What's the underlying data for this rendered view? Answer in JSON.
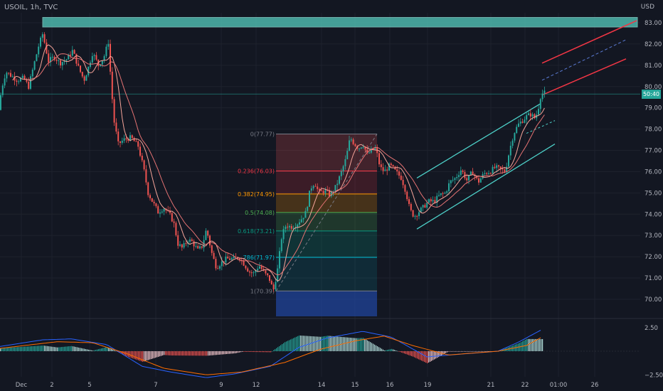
{
  "header": {
    "symbol": "USOIL, 1h, TVC",
    "currency": "USD"
  },
  "current_price_label": "50:40",
  "colors": {
    "bg": "#131722",
    "up": "#26a69a",
    "down": "#ef5350",
    "grid": "#1e222d"
  },
  "chart_data": {
    "type": "candlestick",
    "price_axis": {
      "ticks": [
        83.0,
        82.0,
        81.0,
        80.0,
        79.0,
        78.0,
        77.0,
        76.0,
        75.0,
        74.0,
        73.0,
        72.0,
        71.0,
        70.0
      ],
      "tick_labels": [
        "83.00",
        "82.00",
        "81.00",
        "80.00",
        "79.00",
        "78.00",
        "77.00",
        "76.00",
        "75.00",
        "74.00",
        "73.00",
        "72.00",
        "71.00",
        "70.00"
      ],
      "range": [
        69.8,
        83.6
      ]
    },
    "time_axis": {
      "labels": [
        "Dec",
        "2",
        "5",
        "7",
        "9",
        "12",
        "14",
        "15",
        "16",
        "19",
        "21",
        "22",
        "01:00",
        "26"
      ]
    },
    "price_path": [
      [
        0,
        78.9
      ],
      [
        4,
        79.9
      ],
      [
        10,
        80.7
      ],
      [
        18,
        80.5
      ],
      [
        26,
        80.3
      ],
      [
        35,
        80.4
      ],
      [
        42,
        80.0
      ],
      [
        50,
        81.1
      ],
      [
        56,
        81.9
      ],
      [
        62,
        82.5
      ],
      [
        66,
        81.8
      ],
      [
        70,
        81.2
      ],
      [
        78,
        81.4
      ],
      [
        86,
        81.1
      ],
      [
        96,
        81.3
      ],
      [
        104,
        81.7
      ],
      [
        112,
        80.9
      ],
      [
        120,
        80.3
      ],
      [
        126,
        80.9
      ],
      [
        132,
        81.6
      ],
      [
        140,
        81.0
      ],
      [
        148,
        81.4
      ],
      [
        154,
        82.1
      ],
      [
        158,
        80.1
      ],
      [
        162,
        78.4
      ],
      [
        168,
        77.3
      ],
      [
        176,
        77.5
      ],
      [
        186,
        77.6
      ],
      [
        196,
        77.2
      ],
      [
        204,
        76.1
      ],
      [
        210,
        75.0
      ],
      [
        216,
        74.6
      ],
      [
        224,
        74.1
      ],
      [
        232,
        74.3
      ],
      [
        240,
        74.0
      ],
      [
        246,
        73.6
      ],
      [
        252,
        72.6
      ],
      [
        258,
        72.4
      ],
      [
        266,
        72.8
      ],
      [
        272,
        72.7
      ],
      [
        280,
        72.3
      ],
      [
        286,
        72.5
      ],
      [
        292,
        73.3
      ],
      [
        300,
        72.1
      ],
      [
        306,
        71.5
      ],
      [
        312,
        71.7
      ],
      [
        320,
        71.9
      ],
      [
        330,
        71.9
      ],
      [
        338,
        72.0
      ],
      [
        346,
        71.6
      ],
      [
        352,
        71.3
      ],
      [
        358,
        71.2
      ],
      [
        366,
        71.6
      ],
      [
        374,
        71.2
      ],
      [
        380,
        71.0
      ],
      [
        386,
        70.4
      ],
      [
        392,
        71.4
      ],
      [
        398,
        73.0
      ],
      [
        404,
        73.5
      ],
      [
        410,
        73.4
      ],
      [
        418,
        73.5
      ],
      [
        426,
        73.8
      ],
      [
        432,
        74.1
      ],
      [
        438,
        75.2
      ],
      [
        444,
        75.5
      ],
      [
        450,
        75.0
      ],
      [
        458,
        75.1
      ],
      [
        466,
        74.9
      ],
      [
        474,
        75.3
      ],
      [
        482,
        76.0
      ],
      [
        488,
        76.6
      ],
      [
        494,
        77.6
      ],
      [
        500,
        77.3
      ],
      [
        506,
        77.1
      ],
      [
        512,
        77.3
      ],
      [
        518,
        76.8
      ],
      [
        524,
        77.0
      ],
      [
        530,
        77.1
      ],
      [
        536,
        76.2
      ],
      [
        542,
        76.0
      ],
      [
        550,
        76.3
      ],
      [
        558,
        76.0
      ],
      [
        566,
        75.7
      ],
      [
        572,
        75.1
      ],
      [
        578,
        74.2
      ],
      [
        584,
        73.9
      ],
      [
        590,
        74.1
      ],
      [
        596,
        74.3
      ],
      [
        604,
        74.6
      ],
      [
        612,
        74.6
      ],
      [
        620,
        74.9
      ],
      [
        628,
        75.0
      ],
      [
        634,
        75.5
      ],
      [
        642,
        75.7
      ],
      [
        650,
        76.1
      ],
      [
        658,
        75.6
      ],
      [
        666,
        76.0
      ],
      [
        674,
        75.5
      ],
      [
        682,
        75.9
      ],
      [
        690,
        76.0
      ],
      [
        698,
        76.2
      ],
      [
        706,
        76.1
      ],
      [
        712,
        76.0
      ],
      [
        718,
        77.0
      ],
      [
        724,
        77.8
      ],
      [
        730,
        78.2
      ],
      [
        736,
        78.4
      ],
      [
        742,
        78.6
      ],
      [
        748,
        78.7
      ],
      [
        754,
        78.5
      ],
      [
        758,
        78.9
      ],
      [
        762,
        79.6
      ],
      [
        765,
        79.7
      ]
    ],
    "supply_zone": {
      "from": 82.8,
      "to": 83.25
    },
    "fibonacci": {
      "levels": [
        {
          "ratio": "0",
          "price": 77.77,
          "label": "0(77.77)"
        },
        {
          "ratio": "0.236",
          "price": 76.03,
          "label": "0.236(76.03)"
        },
        {
          "ratio": "0.382",
          "price": 74.95,
          "label": "0.382(74.95)"
        },
        {
          "ratio": "0.5",
          "price": 74.08,
          "label": "0.5(74.08)"
        },
        {
          "ratio": "0.618",
          "price": 73.21,
          "label": "0.618(73.21)"
        },
        {
          "ratio": "0.786",
          "price": 71.97,
          "label": "786(71.97)"
        },
        {
          "ratio": "1",
          "price": 70.39,
          "label": "1(70.39)"
        }
      ]
    },
    "macd": {
      "ticks": [
        2.5,
        -2.5
      ],
      "tick_labels": [
        "2.50",
        "−2.50"
      ],
      "macd_line": [
        [
          0,
          0.5
        ],
        [
          60,
          1.2
        ],
        [
          100,
          1.3
        ],
        [
          150,
          0.7
        ],
        [
          200,
          -1.6
        ],
        [
          240,
          -2.2
        ],
        [
          290,
          -2.8
        ],
        [
          330,
          -2.4
        ],
        [
          380,
          -1.6
        ],
        [
          420,
          0.4
        ],
        [
          460,
          1.4
        ],
        [
          510,
          2.1
        ],
        [
          550,
          1.5
        ],
        [
          600,
          -0.6
        ],
        [
          650,
          -0.3
        ],
        [
          700,
          0.0
        ],
        [
          730,
          1.0
        ],
        [
          762,
          2.3
        ]
      ],
      "signal_line": [
        [
          0,
          0.3
        ],
        [
          80,
          1.0
        ],
        [
          130,
          0.9
        ],
        [
          180,
          -0.3
        ],
        [
          230,
          -1.8
        ],
        [
          290,
          -2.5
        ],
        [
          340,
          -2.2
        ],
        [
          400,
          -1.2
        ],
        [
          450,
          0.2
        ],
        [
          500,
          1.1
        ],
        [
          540,
          1.6
        ],
        [
          580,
          0.6
        ],
        [
          630,
          -0.4
        ],
        [
          700,
          0.0
        ],
        [
          740,
          0.6
        ],
        [
          762,
          1.5
        ]
      ]
    }
  }
}
